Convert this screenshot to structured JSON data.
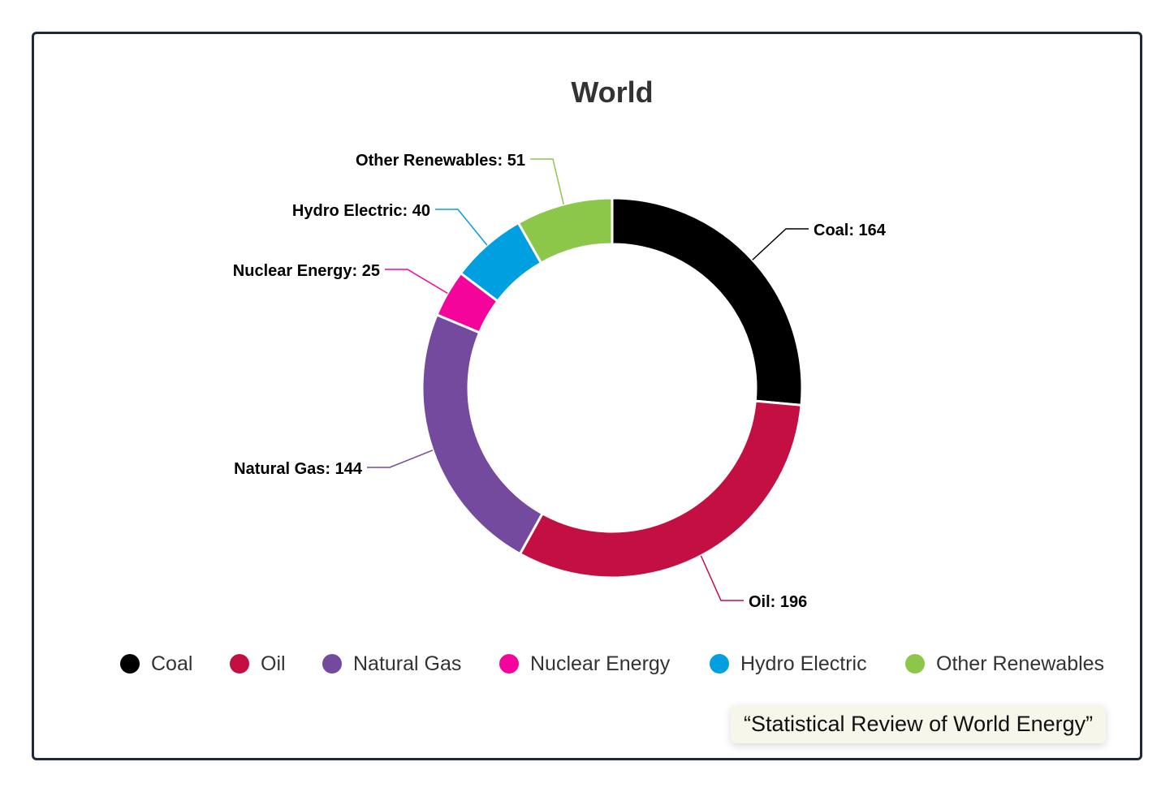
{
  "chart_data": {
    "type": "pie",
    "title": "World",
    "categories": [
      "Coal",
      "Oil",
      "Natural Gas",
      "Nuclear Energy",
      "Hydro Electric",
      "Other Renewables"
    ],
    "values": [
      164,
      196,
      144,
      25,
      40,
      51
    ],
    "colors": [
      "#000000",
      "#c30f42",
      "#744a9e",
      "#f5049b",
      "#00a0e0",
      "#8cc74a"
    ],
    "data_labels": [
      "Coal: 164",
      "Oil: 196",
      "Natural Gas: 144",
      "Nuclear Energy: 25",
      "Hydro Electric: 40",
      "Other Renewables: 51"
    ],
    "donut": true,
    "legend": "bottom"
  },
  "source": "“Statistical Review of World Energy”"
}
